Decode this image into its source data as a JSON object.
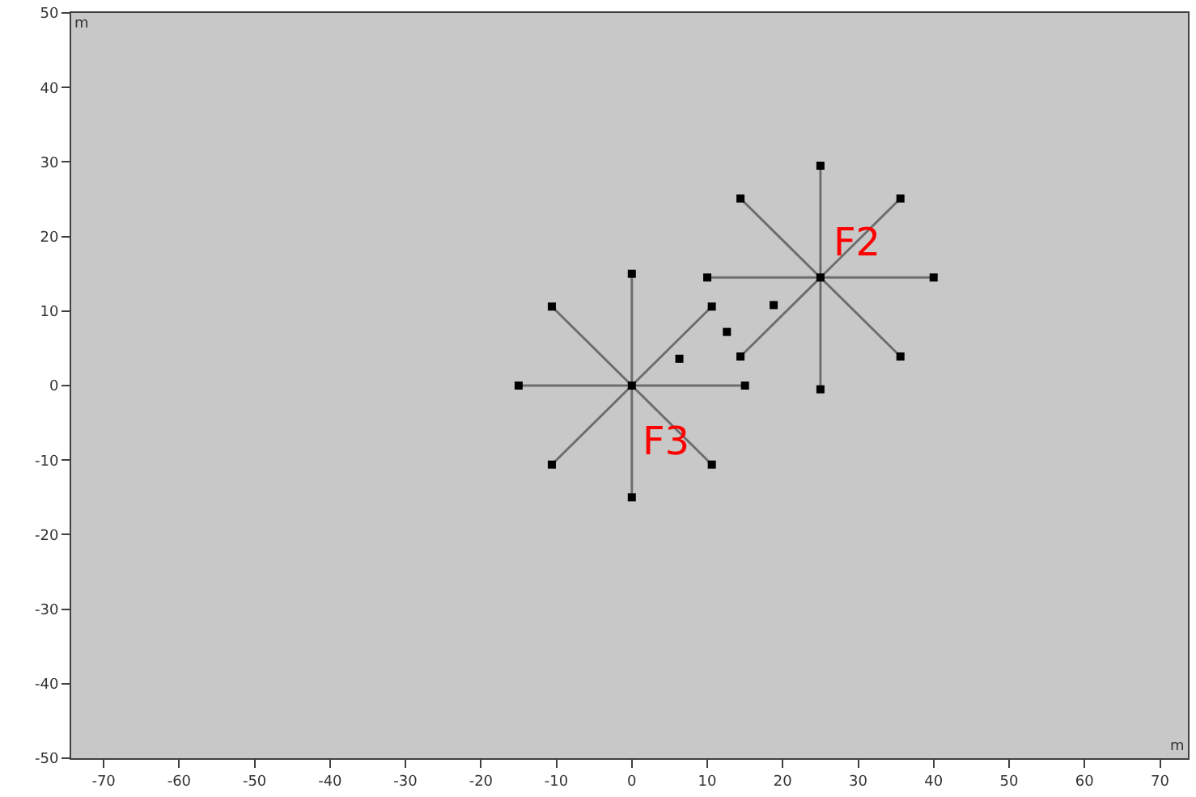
{
  "chart_data": {
    "type": "line",
    "xlabel": "m",
    "ylabel": "m",
    "xlim": [
      -74.3,
      73.7
    ],
    "ylim": [
      -50,
      50
    ],
    "xticks": [
      -70,
      -60,
      -50,
      -40,
      -30,
      -20,
      -10,
      0,
      10,
      20,
      30,
      40,
      50,
      60,
      70
    ],
    "yticks": [
      -50,
      -40,
      -30,
      -20,
      -10,
      0,
      10,
      20,
      30,
      40,
      50
    ],
    "grid": false,
    "series": [
      {
        "color": "#6e6e6e",
        "marker": "none",
        "x": [
          -15,
          0,
          15
        ],
        "values": [
          0,
          0,
          0
        ]
      },
      {
        "color": "#6e6e6e",
        "marker": "none",
        "x": [
          0,
          0,
          0
        ],
        "values": [
          -15,
          0,
          15
        ]
      },
      {
        "color": "#6e6e6e",
        "marker": "none",
        "x": [
          -10.6,
          0,
          10.6
        ],
        "values": [
          -10.6,
          0,
          10.6
        ]
      },
      {
        "color": "#6e6e6e",
        "marker": "none",
        "x": [
          -10.6,
          0,
          10.6
        ],
        "values": [
          10.6,
          0,
          -10.6
        ]
      },
      {
        "color": "#6e6e6e",
        "marker": "none",
        "x": [
          10,
          25,
          40
        ],
        "values": [
          14.5,
          14.5,
          14.5
        ]
      },
      {
        "color": "#6e6e6e",
        "marker": "none",
        "x": [
          25,
          25,
          25
        ],
        "values": [
          -0.5,
          14.5,
          29.5
        ]
      },
      {
        "color": "#6e6e6e",
        "marker": "none",
        "x": [
          14.4,
          25,
          35.6
        ],
        "values": [
          3.9,
          14.5,
          25.1
        ]
      },
      {
        "color": "#6e6e6e",
        "marker": "none",
        "x": [
          14.4,
          25,
          35.6
        ],
        "values": [
          25.1,
          14.5,
          3.9
        ]
      },
      {
        "type": "scatter",
        "color": "#000000",
        "marker": "square",
        "x": [
          0,
          -15,
          15,
          0,
          0,
          -10.6,
          10.6,
          -10.6,
          10.6,
          25,
          10,
          40,
          25,
          25,
          14.4,
          35.6,
          14.4,
          35.6,
          6.3,
          12.6,
          18.8
        ],
        "values": [
          0,
          0,
          0,
          15,
          -15,
          10.6,
          10.6,
          -10.6,
          -10.6,
          14.5,
          14.5,
          14.5,
          29.5,
          -0.5,
          25.1,
          25.1,
          3.9,
          3.9,
          3.6,
          7.2,
          10.8
        ]
      }
    ],
    "annotations": [
      "F2",
      "F3"
    ]
  }
}
